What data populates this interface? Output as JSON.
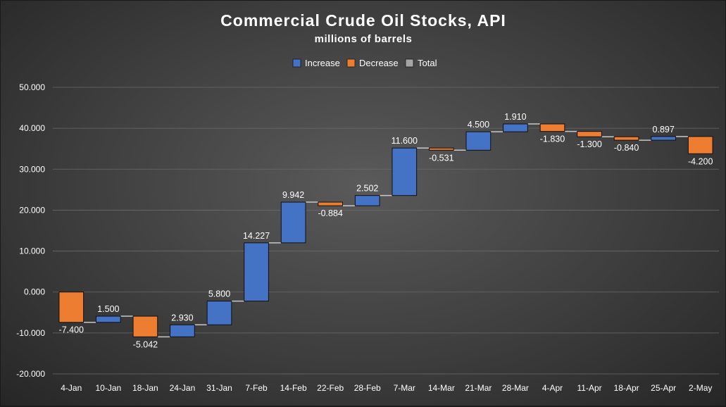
{
  "chart_data": {
    "type": "waterfall",
    "title": "Commercial Crude Oil Stocks, API",
    "subtitle": "millions of barrels",
    "legend": [
      {
        "name": "Increase",
        "color": "#4472c4"
      },
      {
        "name": "Decrease",
        "color": "#ed7d31"
      },
      {
        "name": "Total",
        "color": "#a5a5a5"
      }
    ],
    "legend_position": "top",
    "ylim": [
      -20,
      50
    ],
    "yticks": [
      50,
      40,
      30,
      20,
      10,
      0,
      -10,
      -20
    ],
    "ytick_labels": [
      "50.000",
      "40.000",
      "30.000",
      "20.000",
      "10.000",
      "0.000",
      "-10.000",
      "-20.000"
    ],
    "grid": true,
    "categories": [
      "4-Jan",
      "10-Jan",
      "18-Jan",
      "24-Jan",
      "31-Jan",
      "7-Feb",
      "14-Feb",
      "22-Feb",
      "28-Feb",
      "7-Mar",
      "14-Mar",
      "21-Mar",
      "28-Mar",
      "4-Apr",
      "11-Apr",
      "18-Apr",
      "25-Apr",
      "2-May"
    ],
    "values": [
      -7.4,
      1.5,
      -5.042,
      2.93,
      5.8,
      14.227,
      9.942,
      -0.884,
      2.502,
      11.6,
      -0.531,
      4.5,
      1.91,
      -1.83,
      -1.3,
      -0.84,
      0.897,
      -4.2
    ],
    "value_labels": [
      "-7.400",
      "1.500",
      "-5.042",
      "2.930",
      "5.800",
      "14.227",
      "9.942",
      "-0.884",
      "2.502",
      "11.600",
      "-0.531",
      "4.500",
      "1.910",
      "-1.830",
      "-1.300",
      "-0.840",
      "0.897",
      "-4.200"
    ]
  }
}
